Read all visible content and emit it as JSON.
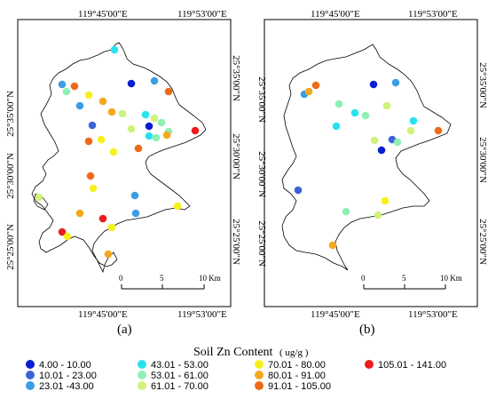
{
  "panels": [
    {
      "label": "(a)",
      "top_ticks": [
        "119°45'00\"E",
        "119°53'00\"E"
      ],
      "bottom_ticks": [
        "119°45'00\"E",
        "119°53'00\"E"
      ],
      "left_ticks": [
        "25°35'00\"N",
        "25°30'00\"N",
        "25°25'00\"N"
      ],
      "right_ticks": [
        "25°35'00\"N",
        "25°30'00\"N",
        "25°25'00\"N"
      ],
      "scale_ticks": [
        "0",
        "5",
        "10 Km"
      ]
    },
    {
      "label": "(b)",
      "top_ticks": [
        "119°45'00\"E",
        "119°53'00\"E"
      ],
      "bottom_ticks": [
        "119°45'00\"E",
        "119°53'00\"E"
      ],
      "left_ticks": [
        "25°35'00\"N",
        "25°30'00\"N",
        "25°25'00\"N"
      ],
      "right_ticks": [
        "25°35'00\"N",
        "25°30'00\"N",
        "25°25'00\"N"
      ],
      "scale_ticks": [
        "0",
        "5",
        "10 Km"
      ]
    }
  ],
  "legend": {
    "title": "Soil Zn Content",
    "unit": "( ug/g )",
    "classes": [
      {
        "label": "4.00 - 10.00",
        "color": "#0a1ecf"
      },
      {
        "label": "10.01 - 23.00",
        "color": "#3c64d8"
      },
      {
        "label": "23.01 -43.00",
        "color": "#3c9de4"
      },
      {
        "label": "43.01 - 53.00",
        "color": "#28e3ee"
      },
      {
        "label": "53.01 - 61.00",
        "color": "#8ff0b4"
      },
      {
        "label": "61.01 - 70.00",
        "color": "#cff27a"
      },
      {
        "label": "70.01 - 80.00",
        "color": "#f7f01e"
      },
      {
        "label": "80.01 - 91.00",
        "color": "#f5a81e"
      },
      {
        "label": "91.01 - 105.00",
        "color": "#ee6a16"
      },
      {
        "label": "105.01 - 141.00",
        "color": "#ec1c1c"
      }
    ]
  },
  "samples_a": [
    {
      "cls": 3
    },
    {
      "cls": 0
    },
    {
      "cls": 2
    },
    {
      "cls": 8
    },
    {
      "cls": 2
    },
    {
      "cls": 8
    },
    {
      "cls": 4
    },
    {
      "cls": 6
    },
    {
      "cls": 7
    },
    {
      "cls": 7
    },
    {
      "cls": 2
    },
    {
      "cls": 5
    },
    {
      "cls": 3
    },
    {
      "cls": 5
    },
    {
      "cls": 4
    },
    {
      "cls": 1
    },
    {
      "cls": 5
    },
    {
      "cls": 4
    },
    {
      "cls": 7
    },
    {
      "cls": 3
    },
    {
      "cls": 4
    },
    {
      "cls": 6
    },
    {
      "cls": 8
    },
    {
      "cls": 0
    },
    {
      "cls": 9
    },
    {
      "cls": 6
    },
    {
      "cls": 8
    },
    {
      "cls": 8
    },
    {
      "cls": 6
    },
    {
      "cls": 2
    },
    {
      "cls": 7
    },
    {
      "cls": 9
    },
    {
      "cls": 2
    },
    {
      "cls": 6
    },
    {
      "cls": 5
    },
    {
      "cls": 9
    },
    {
      "cls": 6
    },
    {
      "cls": 7
    },
    {
      "cls": 6
    }
  ],
  "samples_b": [
    {
      "cls": 0
    },
    {
      "cls": 2
    },
    {
      "cls": 8
    },
    {
      "cls": 2
    },
    {
      "cls": 7
    },
    {
      "cls": 4
    },
    {
      "cls": 3
    },
    {
      "cls": 4
    },
    {
      "cls": 5
    },
    {
      "cls": 3
    },
    {
      "cls": 1
    },
    {
      "cls": 5
    },
    {
      "cls": 5
    },
    {
      "cls": 3
    },
    {
      "cls": 4
    },
    {
      "cls": 8
    },
    {
      "cls": 0
    },
    {
      "cls": 1
    },
    {
      "cls": 6
    },
    {
      "cls": 4
    },
    {
      "cls": 5
    },
    {
      "cls": 7
    }
  ]
}
